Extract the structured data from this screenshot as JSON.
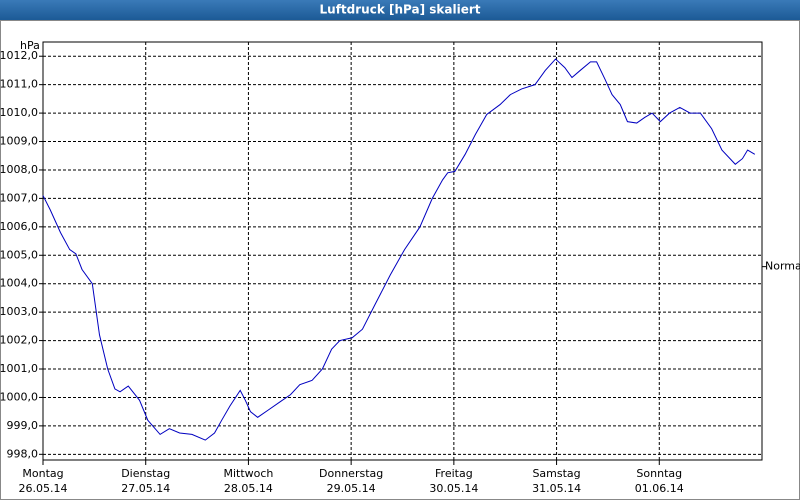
{
  "chart_data": {
    "type": "line",
    "title": "Luftdruck [hPa] skaliert",
    "y_label": "hPa",
    "x": [
      0,
      0.07,
      0.17,
      0.26,
      0.32,
      0.38,
      0.48,
      0.55,
      0.63,
      0.7,
      0.75,
      0.83,
      0.94,
      1.02,
      1.14,
      1.23,
      1.33,
      1.45,
      1.58,
      1.67,
      1.74,
      1.82,
      1.92,
      1.97,
      2.02,
      2.09,
      2.19,
      2.31,
      2.41,
      2.5,
      2.62,
      2.72,
      2.81,
      2.89,
      3.01,
      3.11,
      3.23,
      3.38,
      3.52,
      3.67,
      3.79,
      3.89,
      3.94,
      4.01,
      4.11,
      4.21,
      4.32,
      4.45,
      4.55,
      4.66,
      4.79,
      4.89,
      4.99,
      5.08,
      5.15,
      5.23,
      5.33,
      5.39,
      5.47,
      5.54,
      5.62,
      5.69,
      5.78,
      5.86,
      5.93,
      6.01,
      6.1,
      6.2,
      6.3,
      6.4,
      6.51,
      6.61,
      6.74,
      6.81,
      6.86,
      6.93
    ],
    "series": [
      {
        "color": "#0000c0",
        "values": [
          1007.1,
          1006.6,
          1005.8,
          1005.2,
          1005.05,
          1004.5,
          1004.0,
          1002.2,
          1001.0,
          1000.3,
          1000.2,
          1000.4,
          999.9,
          999.2,
          998.7,
          998.9,
          998.75,
          998.7,
          998.5,
          998.75,
          999.2,
          999.7,
          1000.25,
          999.9,
          999.5,
          999.3,
          999.55,
          999.85,
          1000.1,
          1000.45,
          1000.6,
          1001.0,
          1001.7,
          1002.0,
          1002.1,
          1002.4,
          1003.25,
          1004.3,
          1005.2,
          1006.0,
          1007.0,
          1007.65,
          1007.9,
          1007.95,
          1008.55,
          1009.25,
          1009.95,
          1010.3,
          1010.65,
          1010.85,
          1011.0,
          1011.5,
          1011.9,
          1011.6,
          1011.25,
          1011.5,
          1011.8,
          1011.8,
          1011.2,
          1010.65,
          1010.3,
          1009.7,
          1009.65,
          1009.85,
          1010.0,
          1009.7,
          1010.0,
          1010.2,
          1010.0,
          1010.0,
          1009.45,
          1008.7,
          1008.2,
          1008.4,
          1008.7,
          1008.55
        ]
      }
    ],
    "xlim": [
      0,
      7
    ],
    "ylim": [
      997.8,
      1012.5
    ],
    "xticks": [
      {
        "value": 0,
        "label": [
          "Montag",
          "26.05.14"
        ]
      },
      {
        "value": 1,
        "label": [
          "Dienstag",
          "27.05.14"
        ]
      },
      {
        "value": 2,
        "label": [
          "Mittwoch",
          "28.05.14"
        ]
      },
      {
        "value": 3,
        "label": [
          "Donnerstag",
          "29.05.14"
        ]
      },
      {
        "value": 4,
        "label": [
          "Freitag",
          "30.05.14"
        ]
      },
      {
        "value": 5,
        "label": [
          "Samstag",
          "31.05.14"
        ]
      },
      {
        "value": 6,
        "label": [
          "Sonntag",
          "01.06.14"
        ]
      }
    ],
    "yticks": [
      {
        "value": 998,
        "label": "998,0"
      },
      {
        "value": 999,
        "label": "999,0"
      },
      {
        "value": 1000,
        "label": "1000,0"
      },
      {
        "value": 1001,
        "label": "1001,0"
      },
      {
        "value": 1002,
        "label": "1002,0"
      },
      {
        "value": 1003,
        "label": "1003,0"
      },
      {
        "value": 1004,
        "label": "1004,0"
      },
      {
        "value": 1005,
        "label": "1005,0"
      },
      {
        "value": 1006,
        "label": "1006,0"
      },
      {
        "value": 1007,
        "label": "1007,0"
      },
      {
        "value": 1008,
        "label": "1008,0"
      },
      {
        "value": 1009,
        "label": "1009,0"
      },
      {
        "value": 1010,
        "label": "1010,0"
      },
      {
        "value": 1011,
        "label": "1011,0"
      },
      {
        "value": 1012,
        "label": "1012,0"
      }
    ],
    "marker": {
      "label": "Normal",
      "value": 1004.6
    },
    "grid": true
  }
}
